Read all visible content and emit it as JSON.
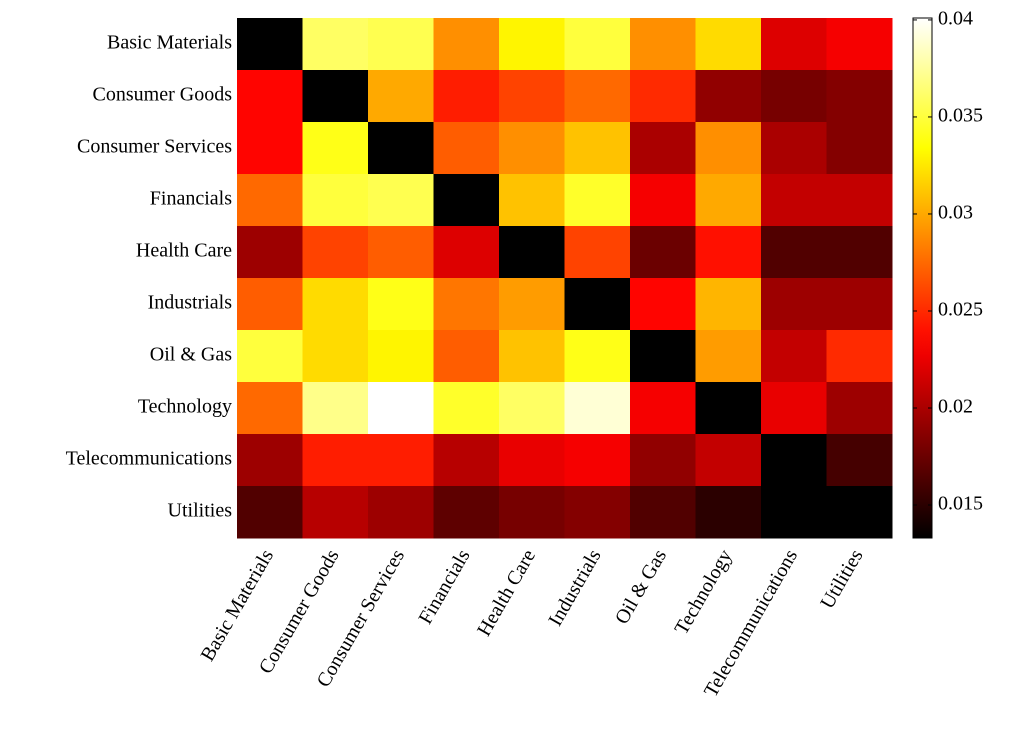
{
  "chart_data": {
    "type": "heatmap",
    "colormap": "hot",
    "x_categories": [
      "Basic Materials",
      "Consumer Goods",
      "Consumer Services",
      "Financials",
      "Health Care",
      "Industrials",
      "Oil & Gas",
      "Technology",
      "Telecommunications",
      "Utilities"
    ],
    "y_categories": [
      "Basic Materials",
      "Consumer Goods",
      "Consumer Services",
      "Financials",
      "Health Care",
      "Industrials",
      "Oil & Gas",
      "Technology",
      "Telecommunications",
      "Utilities"
    ],
    "values": [
      [
        0,
        0.036,
        0.0355,
        0.029,
        0.033,
        0.035,
        0.029,
        0.032,
        0.022,
        0.023
      ],
      [
        0.0235,
        0,
        0.03,
        0.0245,
        0.026,
        0.0275,
        0.025,
        0.019,
        0.018,
        0.0185
      ],
      [
        0.0235,
        0.034,
        0,
        0.027,
        0.029,
        0.031,
        0.02,
        0.029,
        0.02,
        0.0185
      ],
      [
        0.0275,
        0.035,
        0.0355,
        0,
        0.031,
        0.0345,
        0.023,
        0.03,
        0.021,
        0.021
      ],
      [
        0.0195,
        0.026,
        0.027,
        0.022,
        0,
        0.026,
        0.0175,
        0.024,
        0.0165,
        0.0165
      ],
      [
        0.027,
        0.032,
        0.034,
        0.028,
        0.0295,
        0,
        0.0235,
        0.0305,
        0.0195,
        0.0195
      ],
      [
        0.035,
        0.032,
        0.033,
        0.027,
        0.031,
        0.034,
        0,
        0.0295,
        0.021,
        0.025
      ],
      [
        0.0275,
        0.037,
        0.0401,
        0.0345,
        0.036,
        0.039,
        0.023,
        0,
        0.0225,
        0.0195
      ],
      [
        0.0195,
        0.0245,
        0.0245,
        0.0205,
        0.0225,
        0.023,
        0.019,
        0.021,
        0,
        0.016
      ],
      [
        0.0165,
        0.0205,
        0.0195,
        0.017,
        0.018,
        0.0185,
        0.0165,
        0.015,
        0.0133,
        0.0133
      ]
    ],
    "clim": [
      0.0133,
      0.0401
    ],
    "cticks": [
      0.015,
      0.02,
      0.025,
      0.03,
      0.035,
      0.04
    ]
  }
}
